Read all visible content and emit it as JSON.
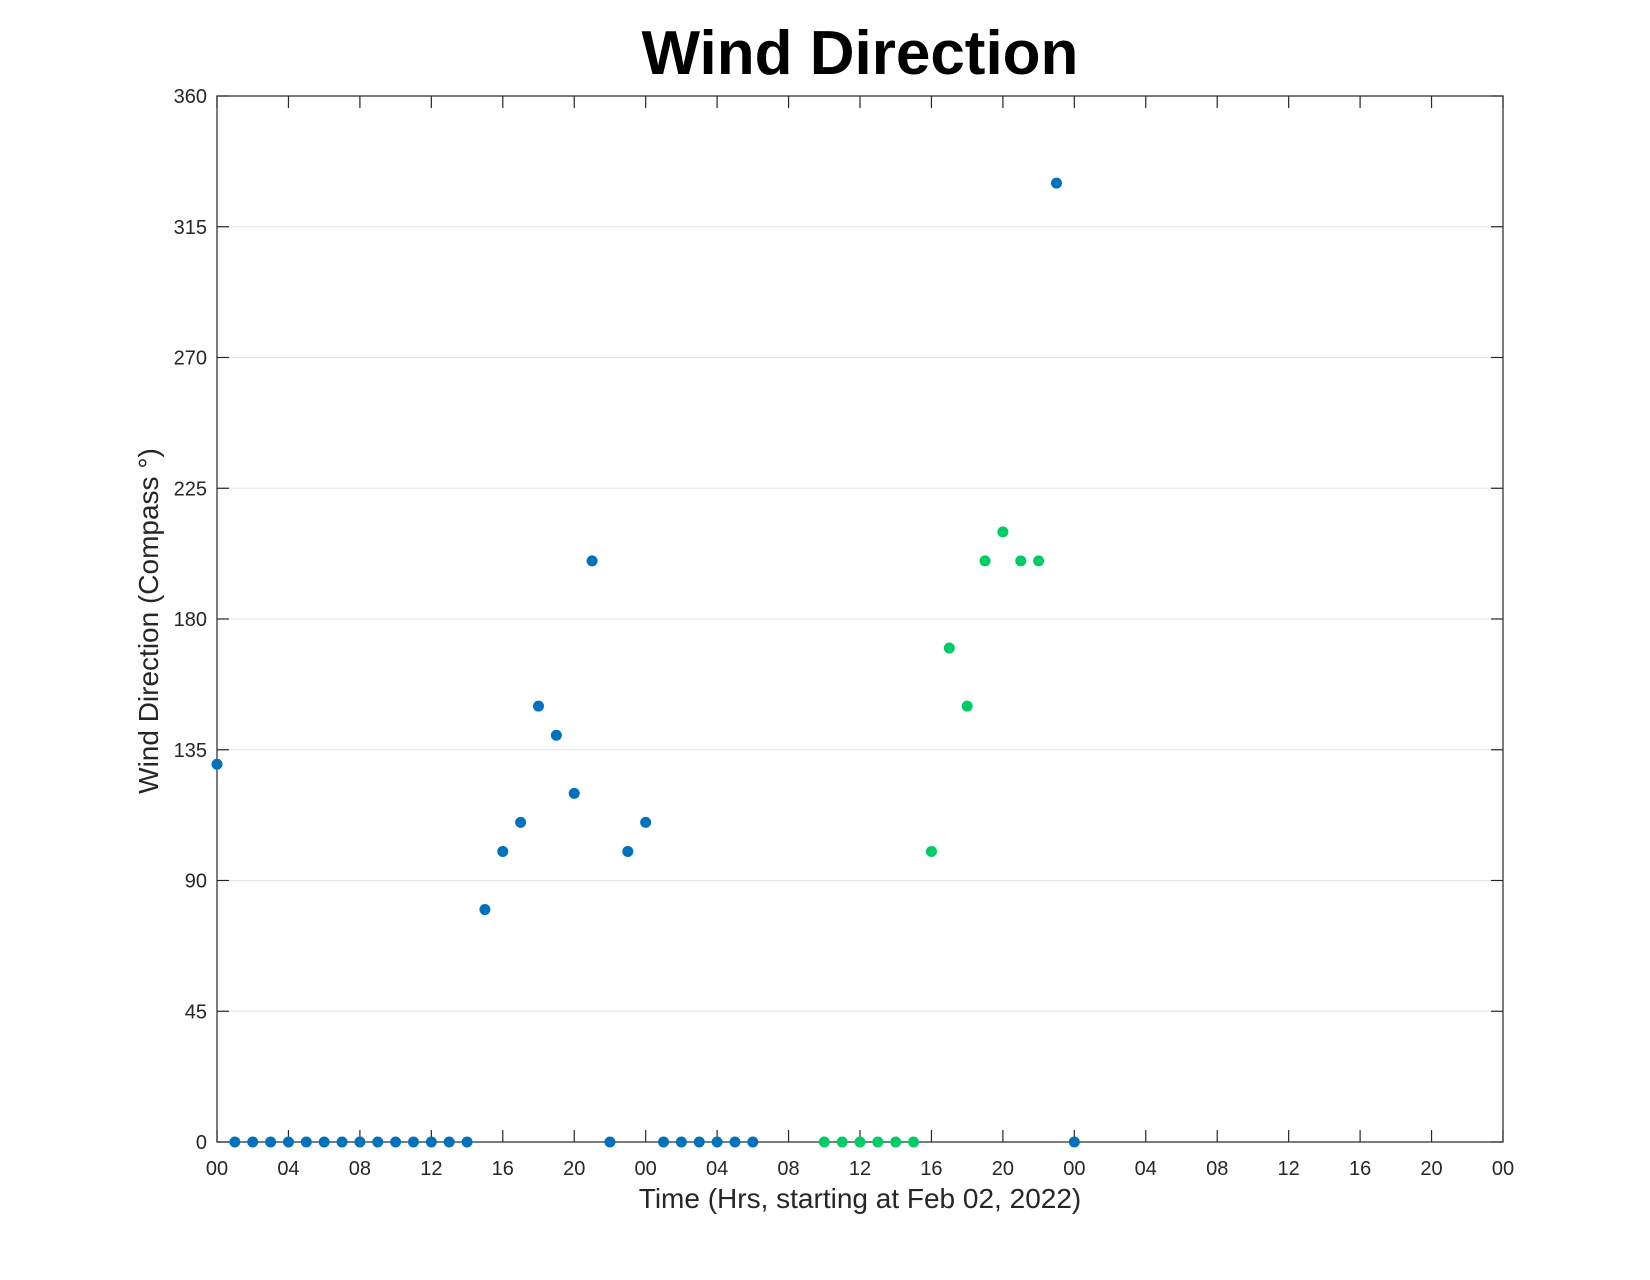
{
  "chart_data": {
    "type": "scatter",
    "title": "Wind Direction",
    "xlabel": "Time (Hrs, starting at Feb 02, 2022)",
    "ylabel": "Wind Direction (Compass °)",
    "xlim": [
      0,
      72
    ],
    "ylim": [
      0,
      360
    ],
    "grid": "horizontal",
    "x_ticks": [
      0,
      4,
      8,
      12,
      16,
      20,
      24,
      28,
      32,
      36,
      40,
      44,
      48,
      52,
      56,
      60,
      64,
      68,
      72
    ],
    "x_tick_labels": [
      "00",
      "04",
      "08",
      "12",
      "16",
      "20",
      "00",
      "04",
      "08",
      "12",
      "16",
      "20",
      "00",
      "04",
      "08",
      "12",
      "16",
      "20",
      "00"
    ],
    "y_ticks": [
      0,
      45,
      90,
      135,
      180,
      225,
      270,
      315,
      360
    ],
    "y_tick_labels": [
      "0",
      "45",
      "90",
      "135",
      "180",
      "225",
      "270",
      "315",
      "360"
    ],
    "series": [
      {
        "color": "#0072bd",
        "x": [
          0,
          1,
          2,
          3,
          4,
          5,
          6,
          7,
          8,
          9,
          10,
          11,
          12,
          13,
          14,
          15,
          16,
          17,
          18,
          19,
          20,
          21,
          22,
          23,
          24,
          25,
          26,
          27,
          28,
          29,
          30,
          47,
          48
        ],
        "y": [
          130,
          0,
          0,
          0,
          0,
          0,
          0,
          0,
          0,
          0,
          0,
          0,
          0,
          0,
          0,
          80,
          100,
          110,
          150,
          140,
          120,
          200,
          0,
          100,
          110,
          0,
          0,
          0,
          0,
          0,
          0,
          330,
          0
        ]
      },
      {
        "color": "#00cc66",
        "x": [
          34,
          35,
          36,
          37,
          38,
          39,
          40,
          41,
          42,
          43,
          44,
          45,
          46
        ],
        "y": [
          0,
          0,
          0,
          0,
          0,
          0,
          100,
          170,
          150,
          200,
          210,
          200,
          200
        ]
      }
    ]
  }
}
